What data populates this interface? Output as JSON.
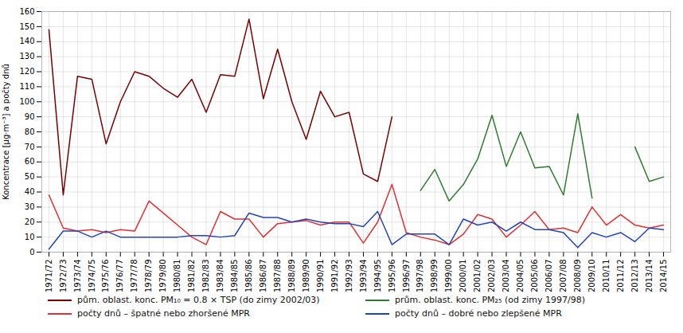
{
  "chart_data": {
    "type": "line",
    "categories": [
      "1971/72",
      "1972/73",
      "1973/74",
      "1974/75",
      "1975/76",
      "1976/77",
      "1977/78",
      "1978/79",
      "1979/80",
      "1980/81",
      "1981/82",
      "1982/83",
      "1983/84",
      "1984/85",
      "1985/86",
      "1986/87",
      "1987/88",
      "1988/89",
      "1989/90",
      "1990/91",
      "1991/92",
      "1992/93",
      "1993/94",
      "1994/95",
      "1995/96",
      "1996/97",
      "1997/98",
      "1998/99",
      "1999/00",
      "2000/01",
      "2001/02",
      "2002/03",
      "2003/04",
      "2004/05",
      "2005/06",
      "2006/07",
      "2007/08",
      "2008/09",
      "2009/10",
      "2010/11",
      "2011/12",
      "2012/13",
      "2013/14",
      "2014/15"
    ],
    "series": [
      {
        "name": "pům. oblast. konc. PM₁₀ = 0.8 × TSP (do zimy 2002/03)",
        "color": "#7a0000",
        "values": [
          148,
          38,
          117,
          115,
          72,
          100,
          120,
          117,
          109,
          103,
          115,
          93,
          118,
          117,
          155,
          102,
          135,
          100,
          75,
          107,
          90,
          93,
          52,
          47,
          90,
          null,
          null,
          null,
          null,
          null,
          null,
          null,
          null,
          null,
          null,
          null,
          null,
          null,
          null,
          null,
          null,
          null,
          null,
          null
        ]
      },
      {
        "name": "prům. oblast. konc. PM₂₅ (od zimy 1997/98)",
        "color": "#2e7d2e",
        "values": [
          null,
          null,
          null,
          null,
          null,
          null,
          null,
          null,
          null,
          null,
          null,
          null,
          null,
          null,
          null,
          null,
          null,
          null,
          null,
          null,
          null,
          null,
          null,
          null,
          null,
          null,
          41,
          55,
          34,
          45,
          62,
          91,
          57,
          80,
          56,
          57,
          38,
          92,
          36,
          null,
          null,
          70,
          47,
          50
        ]
      },
      {
        "name": "počty dnů – špatné nebo zhoršené MPR",
        "color": "#e03030",
        "values": [
          38,
          16,
          14,
          15,
          13,
          15,
          14,
          34,
          26,
          18,
          10,
          5,
          27,
          22,
          22,
          10,
          19,
          20,
          21,
          18,
          20,
          20,
          6,
          20,
          45,
          13,
          10,
          8,
          5,
          12,
          25,
          22,
          10,
          18,
          27,
          15,
          16,
          13,
          30,
          18,
          25,
          18,
          16,
          18
        ]
      },
      {
        "name": "počty dnů – dobré nebo zlepšené MPR",
        "color": "#2244bb",
        "values": [
          2,
          14,
          14,
          10,
          14,
          10,
          10,
          10,
          10,
          10,
          11,
          11,
          10,
          11,
          26,
          23,
          23,
          20,
          22,
          20,
          19,
          19,
          17,
          27,
          5,
          12,
          12,
          12,
          5,
          22,
          18,
          20,
          14,
          20,
          15,
          15,
          13,
          3,
          13,
          10,
          13,
          7,
          16,
          15
        ]
      }
    ],
    "ylabel": "Koncentrace [μg·m⁻³] a počty dnů",
    "ylim": [
      0,
      160
    ],
    "yticks": [
      0,
      10,
      20,
      30,
      40,
      50,
      60,
      70,
      80,
      90,
      100,
      110,
      120,
      130,
      140,
      150,
      160
    ],
    "grid": true,
    "legend": "bottom"
  }
}
